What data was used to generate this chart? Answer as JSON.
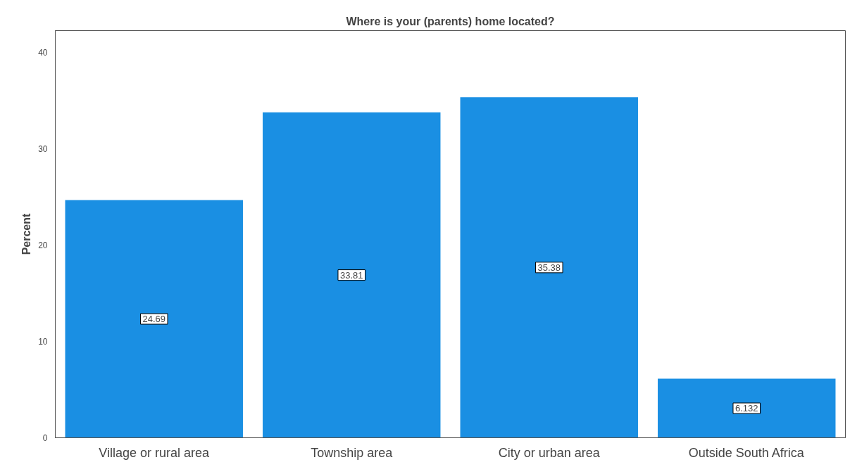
{
  "chart_data": {
    "type": "bar",
    "title": "Where is your (parents) home located?",
    "ylabel": "Percent",
    "categories": [
      "Village or rural area",
      "Township area",
      "City or urban area",
      "Outside South Africa"
    ],
    "values": [
      24.69,
      33.81,
      35.38,
      6.132
    ],
    "color": "#1a8fe3",
    "ylim": [
      0,
      42.3
    ],
    "yticks": [
      0,
      10,
      20,
      30,
      40
    ],
    "grid": false,
    "data_labels": true
  }
}
